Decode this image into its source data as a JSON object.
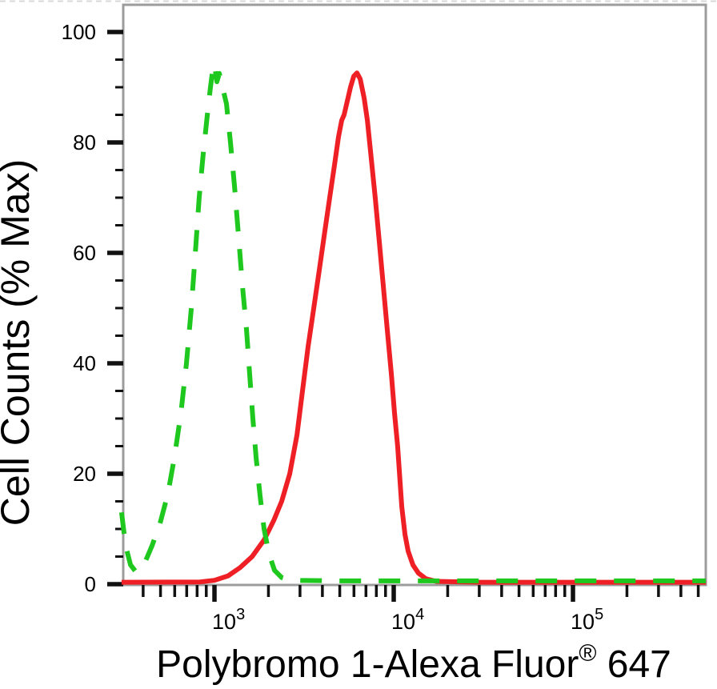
{
  "figure": {
    "kind": "flow-cytometry-overlay-histogram"
  },
  "chart_data": {
    "type": "line",
    "title": "",
    "xlabel": {
      "text": "Polybromo 1-Alexa Fluor",
      "sup": "®",
      "suffix": " 647"
    },
    "ylabel": "Cell Counts (% Max)",
    "x_scale": "log",
    "x_range": [
      310,
      551000
    ],
    "ylim": [
      0,
      105
    ],
    "grid": false,
    "legend": "none",
    "y_major_ticks": [
      0,
      20,
      40,
      60,
      80,
      100
    ],
    "y_tick_labels": [
      "0",
      "20",
      "40",
      "60",
      "80",
      "100"
    ],
    "y_minor_step": 5,
    "x_major_ticks": [
      {
        "value": 1000,
        "base": "10",
        "exp": "3"
      },
      {
        "value": 10000,
        "base": "10",
        "exp": "4"
      },
      {
        "value": 100000,
        "base": "10",
        "exp": "5"
      }
    ],
    "colors": {
      "green": "#1fc81f",
      "red": "#ee2026",
      "axis": "#9c9c9c",
      "tick": "#111111",
      "text": "#000000",
      "border_dash": "#d9d9d9"
    },
    "series": [
      {
        "name": "red-solid-stained",
        "color": "#ee2026",
        "line_style": "solid",
        "peak": {
          "x": 6200,
          "y": 92.6
        },
        "points": [
          [
            303,
            0.35
          ],
          [
            832,
            0.4
          ],
          [
            1000,
            0.7
          ],
          [
            1191,
            1.5
          ],
          [
            1389,
            3
          ],
          [
            1622,
            5
          ],
          [
            1892,
            8
          ],
          [
            2140,
            11.5
          ],
          [
            2371,
            15
          ],
          [
            2630,
            20
          ],
          [
            2884,
            27
          ],
          [
            3097,
            35
          ],
          [
            3327,
            43
          ],
          [
            3581,
            50
          ],
          [
            3846,
            57
          ],
          [
            4130,
            64
          ],
          [
            4395,
            70
          ],
          [
            4677,
            76
          ],
          [
            4920,
            81
          ],
          [
            5128,
            84
          ],
          [
            5284,
            85
          ],
          [
            5508,
            87.5
          ],
          [
            5741,
            90
          ],
          [
            5984,
            92
          ],
          [
            6237,
            92.6
          ],
          [
            6500,
            91.5
          ],
          [
            6840,
            88
          ],
          [
            7129,
            84
          ],
          [
            7499,
            77
          ],
          [
            7889,
            70
          ],
          [
            8310,
            62
          ],
          [
            8749,
            54
          ],
          [
            9205,
            46
          ],
          [
            9702,
            38
          ],
          [
            10100,
            31
          ],
          [
            10520,
            25
          ],
          [
            11090,
            14
          ],
          [
            11560,
            9
          ],
          [
            12030,
            6
          ],
          [
            12800,
            3.5
          ],
          [
            13740,
            2
          ],
          [
            15100,
            1
          ],
          [
            17260,
            0.5
          ],
          [
            30300,
            0.35
          ],
          [
            84900,
            0.35
          ],
          [
            237000,
            0.35
          ],
          [
            552000,
            0.35
          ]
        ]
      },
      {
        "name": "green-dashed-control",
        "color": "#1fc81f",
        "line_style": "dashed",
        "peak": {
          "x": 1000,
          "y": 94.2
        },
        "points": [
          [
            303,
            13
          ],
          [
            319,
            7
          ],
          [
            340,
            3.5
          ],
          [
            365,
            2.2
          ],
          [
            404,
            3.5
          ],
          [
            449,
            7
          ],
          [
            497,
            11
          ],
          [
            551,
            16.5
          ],
          [
            598,
            23
          ],
          [
            650,
            31
          ],
          [
            698,
            40
          ],
          [
            743,
            50
          ],
          [
            782,
            60
          ],
          [
            822,
            70
          ],
          [
            866,
            78
          ],
          [
            912,
            85
          ],
          [
            950,
            90
          ],
          [
            980,
            93.5
          ],
          [
            1000,
            94.2
          ],
          [
            1031,
            91
          ],
          [
            1064,
            92.5
          ],
          [
            1109,
            90
          ],
          [
            1167,
            87
          ],
          [
            1228,
            80
          ],
          [
            1294,
            72
          ],
          [
            1362,
            63
          ],
          [
            1433,
            54
          ],
          [
            1510,
            46
          ],
          [
            1571,
            38
          ],
          [
            1638,
            30
          ],
          [
            1707,
            23
          ],
          [
            1796,
            16
          ],
          [
            1892,
            10
          ],
          [
            2013,
            5.5
          ],
          [
            2163,
            2.5
          ],
          [
            2371,
            1.2
          ],
          [
            2710,
            0.7
          ],
          [
            5000,
            0.6
          ],
          [
            20000,
            0.6
          ],
          [
            100000,
            0.6
          ],
          [
            400000,
            0.6
          ],
          [
            551000,
            0.6
          ]
        ]
      }
    ]
  }
}
